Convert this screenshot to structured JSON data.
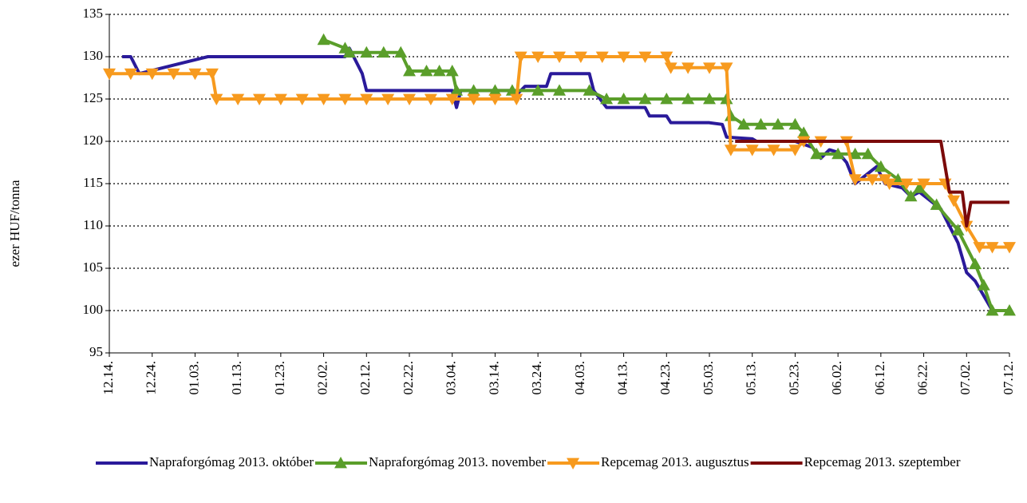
{
  "chart_data": {
    "type": "line",
    "y_label": "ezer HUF/tonna",
    "xlim": [
      "12.14.",
      "07.12."
    ],
    "xticks": [
      "12.14.",
      "12.24.",
      "01.03.",
      "01.13.",
      "01.23.",
      "02.02.",
      "02.12.",
      "02.22.",
      "03.04.",
      "03.14.",
      "03.24.",
      "04.03.",
      "04.13.",
      "04.23.",
      "05.03.",
      "05.13.",
      "05.23.",
      "06.02.",
      "06.12.",
      "06.22.",
      "07.02.",
      "07.12."
    ],
    "ylim": [
      95,
      135
    ],
    "yticks": [
      95,
      100,
      105,
      110,
      115,
      120,
      125,
      130,
      135
    ],
    "grid": true,
    "legend": "bottom",
    "series": [
      {
        "name": "Napraforgómag 2013. október",
        "color": "#2a1a9a",
        "marker": "none",
        "x": [
          "12.17.",
          "12.19.",
          "12.21.",
          "01.06.",
          "01.23.",
          "02.07.",
          "02.08.",
          "02.11.",
          "02.12.",
          "03.04.",
          "03.05.",
          "03.06.",
          "03.18.",
          "03.19.",
          "03.20.",
          "03.21.",
          "03.26.",
          "03.27.",
          "04.05.",
          "04.06.",
          "04.09.",
          "04.18.",
          "04.19.",
          "04.23.",
          "04.24.",
          "05.03.",
          "05.06.",
          "05.07.",
          "05.13.",
          "05.14.",
          "05.23.",
          "05.27.",
          "05.29.",
          "05.31.",
          "06.02.",
          "06.04.",
          "06.06.",
          "06.11.",
          "06.13.",
          "06.17.",
          "06.19.",
          "06.21.",
          "06.26.",
          "06.30.",
          "07.02.",
          "07.04.",
          "07.08.",
          "07.12."
        ],
        "values": [
          130,
          130,
          128,
          130,
          130,
          130,
          131,
          128,
          126,
          126,
          124,
          126,
          126,
          125.5,
          126,
          126.5,
          126.5,
          128,
          128,
          126,
          124,
          124,
          123,
          123,
          122.2,
          122.2,
          122,
          120.5,
          120.3,
          120,
          120,
          119.3,
          118,
          119,
          118.7,
          117.5,
          115,
          117,
          115,
          114.5,
          113.5,
          114,
          112,
          108,
          104.5,
          103.5,
          100,
          100
        ]
      },
      {
        "name": "Napraforgómag 2013. november",
        "color": "#5a9e2a",
        "marker": "triangle-up",
        "x": [
          "02.02.",
          "02.07.",
          "02.08.",
          "02.12.",
          "02.16.",
          "02.20.",
          "02.22.",
          "02.26.",
          "03.01.",
          "03.04.",
          "03.05.",
          "03.09.",
          "03.14.",
          "03.18.",
          "03.24.",
          "03.29.",
          "04.05.",
          "04.09.",
          "04.13.",
          "04.18.",
          "04.23.",
          "04.28.",
          "05.03.",
          "05.07.",
          "05.08.",
          "05.11.",
          "05.15.",
          "05.19.",
          "05.23.",
          "05.25.",
          "05.28.",
          "06.02.",
          "06.06.",
          "06.09.",
          "06.12.",
          "06.16.",
          "06.19.",
          "06.21.",
          "06.25.",
          "06.30.",
          "07.04.",
          "07.06.",
          "07.08.",
          "07.12."
        ],
        "values": [
          132,
          131,
          130.5,
          130.5,
          130.5,
          130.5,
          128.3,
          128.3,
          128.3,
          128.3,
          126,
          126,
          126,
          126,
          126,
          126,
          126,
          125,
          125,
          125,
          125,
          125,
          125,
          125,
          123,
          122,
          122,
          122,
          122,
          121,
          118.5,
          118.5,
          118.5,
          118.5,
          117,
          115.5,
          113.5,
          114.5,
          112.5,
          109.5,
          105.5,
          103,
          100,
          100
        ]
      },
      {
        "name": "Repcemag 2013. augusztus",
        "color": "#f79a1e",
        "marker": "triangle-down",
        "x": [
          "12.14.",
          "12.19.",
          "12.24.",
          "12.29.",
          "01.03.",
          "01.07.",
          "01.08.",
          "01.13.",
          "01.18.",
          "01.23.",
          "01.28.",
          "02.02.",
          "02.07.",
          "02.12.",
          "02.17.",
          "02.22.",
          "02.27.",
          "03.04.",
          "03.09.",
          "03.14.",
          "03.19.",
          "03.20.",
          "03.24.",
          "03.29.",
          "04.03.",
          "04.08.",
          "04.13.",
          "04.18.",
          "04.23.",
          "04.24.",
          "04.28.",
          "05.03.",
          "05.07.",
          "05.08.",
          "05.13.",
          "05.18.",
          "05.23.",
          "05.25.",
          "05.29.",
          "06.04.",
          "06.06.",
          "06.10.",
          "06.13.",
          "06.14.",
          "06.18.",
          "06.22.",
          "06.27.",
          "06.29.",
          "07.02.",
          "07.05.",
          "07.08.",
          "07.12."
        ],
        "values": [
          128,
          128,
          128,
          128,
          128,
          128,
          125,
          125,
          125,
          125,
          125,
          125,
          125,
          125,
          125,
          125,
          125,
          125,
          125,
          125,
          125,
          130,
          130,
          130,
          130,
          130,
          130,
          130,
          130,
          128.7,
          128.7,
          128.7,
          128.7,
          119,
          119,
          119,
          119,
          120,
          120,
          120,
          115.5,
          115.5,
          115.5,
          115,
          115,
          115,
          115,
          113,
          110,
          107.5,
          107.5,
          107.5
        ]
      },
      {
        "name": "Repcemag 2013. szeptember",
        "color": "#7b0a0a",
        "marker": "none",
        "x": [
          "05.09.",
          "06.26.",
          "06.28.",
          "07.01.",
          "07.02.",
          "07.03.",
          "07.12."
        ],
        "values": [
          120,
          120,
          114,
          114,
          110,
          112.8,
          112.8
        ]
      }
    ]
  }
}
